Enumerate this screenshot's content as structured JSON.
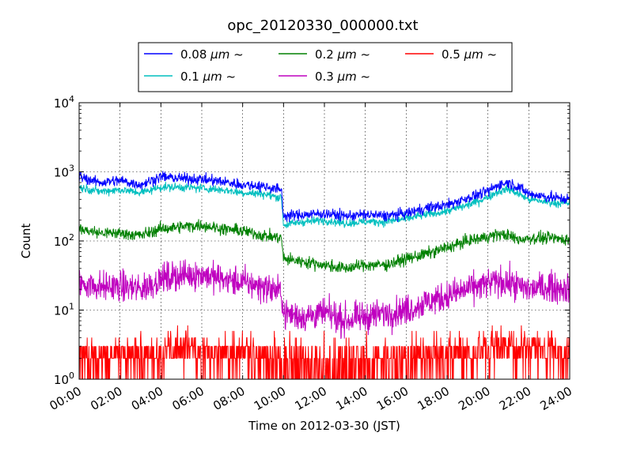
{
  "chart_data": {
    "type": "line",
    "title": "opc_20120330_000000.txt",
    "xlabel": "Time on 2012-03-30 (JST)",
    "ylabel": "Count",
    "y_scale": "log",
    "ylim": [
      1,
      10000
    ],
    "xlim": [
      "00:00",
      "24:00"
    ],
    "x_ticks": [
      "00:00",
      "02:00",
      "04:00",
      "06:00",
      "08:00",
      "10:00",
      "12:00",
      "14:00",
      "16:00",
      "18:00",
      "20:00",
      "22:00",
      "24:00"
    ],
    "y_ticks": [
      {
        "base": "10",
        "exp": "0",
        "value": 1
      },
      {
        "base": "10",
        "exp": "1",
        "value": 10
      },
      {
        "base": "10",
        "exp": "2",
        "value": 100
      },
      {
        "base": "10",
        "exp": "3",
        "value": 1000
      },
      {
        "base": "10",
        "exp": "4",
        "value": 10000
      }
    ],
    "grid": true,
    "legend_position": "top-center",
    "x_hours": [
      0,
      1,
      2,
      3,
      4,
      5,
      6,
      7,
      8,
      9,
      9.9,
      10,
      11,
      12,
      13,
      14,
      15,
      16,
      17,
      18,
      19,
      20,
      20.5,
      21,
      21.5,
      22,
      23,
      24
    ],
    "series": [
      {
        "name": "0.08",
        "unit": "μm ~",
        "color": "#0000ff",
        "noise": 0.09,
        "values": [
          850,
          700,
          750,
          650,
          850,
          800,
          780,
          720,
          650,
          620,
          550,
          230,
          240,
          250,
          230,
          240,
          230,
          250,
          300,
          330,
          420,
          520,
          650,
          700,
          600,
          480,
          430,
          400
        ]
      },
      {
        "name": "0.1",
        "unit": "μm ~",
        "color": "#00bfbf",
        "noise": 0.07,
        "values": [
          600,
          520,
          550,
          500,
          600,
          600,
          580,
          550,
          500,
          480,
          420,
          170,
          190,
          200,
          180,
          190,
          190,
          210,
          240,
          270,
          330,
          430,
          520,
          560,
          480,
          400,
          360,
          350
        ]
      },
      {
        "name": "0.2",
        "unit": "μm ~",
        "color": "#008000",
        "noise": 0.1,
        "values": [
          150,
          130,
          130,
          120,
          150,
          160,
          170,
          150,
          140,
          120,
          110,
          55,
          50,
          45,
          40,
          45,
          45,
          55,
          65,
          80,
          100,
          115,
          125,
          120,
          105,
          110,
          110,
          105
        ]
      },
      {
        "name": "0.3",
        "unit": "μm ~",
        "color": "#bf00bf",
        "noise": 0.25,
        "values": [
          25,
          22,
          22,
          20,
          28,
          32,
          33,
          28,
          25,
          22,
          18,
          9,
          8,
          9,
          7,
          8,
          9,
          10,
          13,
          16,
          20,
          24,
          26,
          25,
          22,
          20,
          22,
          20
        ]
      },
      {
        "name": "0.5",
        "unit": "μm ~",
        "color": "#ff0000",
        "discrete": true,
        "values": [
          1.8,
          1.8,
          1.8,
          1.8,
          2.2,
          2.2,
          2.2,
          2.0,
          2.0,
          1.8,
          1.5,
          1.2,
          1.2,
          1.2,
          1.2,
          1.3,
          1.3,
          1.5,
          1.7,
          1.8,
          2.0,
          2.2,
          2.3,
          2.3,
          2.2,
          2.1,
          2.2,
          2.1
        ]
      }
    ]
  }
}
